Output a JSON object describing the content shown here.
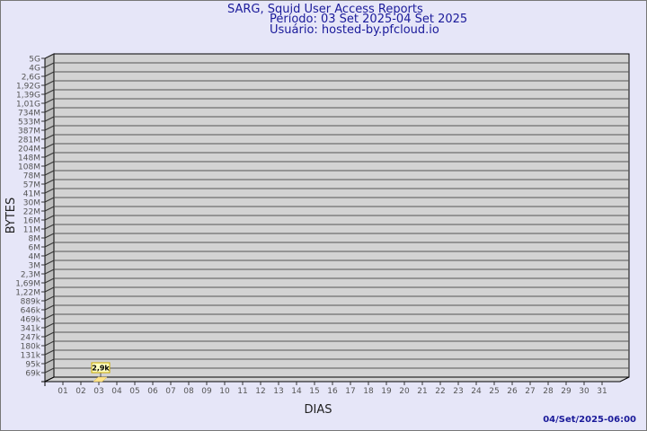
{
  "chart_data": {
    "type": "bar",
    "title": "SARG, Squid User Access Reports",
    "subtitle": [
      "Período: 03 Set 2025-04 Set 2025",
      "Usuário: hosted-by.pfcloud.io"
    ],
    "xlabel": "DIAS",
    "ylabel": "BYTES",
    "y_scale": "log",
    "y_tick_labels": [
      "5G",
      "4G",
      "2,6G",
      "1,92G",
      "1,39G",
      "1,01G",
      "734M",
      "533M",
      "387M",
      "281M",
      "204M",
      "148M",
      "108M",
      "78M",
      "57M",
      "41M",
      "30M",
      "22M",
      "16M",
      "11M",
      "8M",
      "6M",
      "4M",
      "3M",
      "2,3M",
      "1,69M",
      "1,22M",
      "889k",
      "646k",
      "469k",
      "341k",
      "247k",
      "180k",
      "131k",
      "95k",
      "69k"
    ],
    "categories": [
      "01",
      "02",
      "03",
      "04",
      "05",
      "06",
      "07",
      "08",
      "09",
      "10",
      "11",
      "12",
      "13",
      "14",
      "15",
      "16",
      "17",
      "18",
      "19",
      "20",
      "21",
      "22",
      "23",
      "24",
      "25",
      "26",
      "27",
      "28",
      "29",
      "30",
      "31"
    ],
    "series": [
      {
        "points": [
          {
            "x": "03",
            "value": 2900,
            "label": "2,9k"
          }
        ]
      }
    ],
    "grid": true,
    "colors": {
      "background": "#e6e6f8",
      "wall": "#d3d3d3",
      "side": "#bdbdbd",
      "bar": "#ffe48a",
      "title": "#1a1a9a"
    }
  },
  "footer": {
    "timestamp": "04/Set/2025-06:00"
  }
}
